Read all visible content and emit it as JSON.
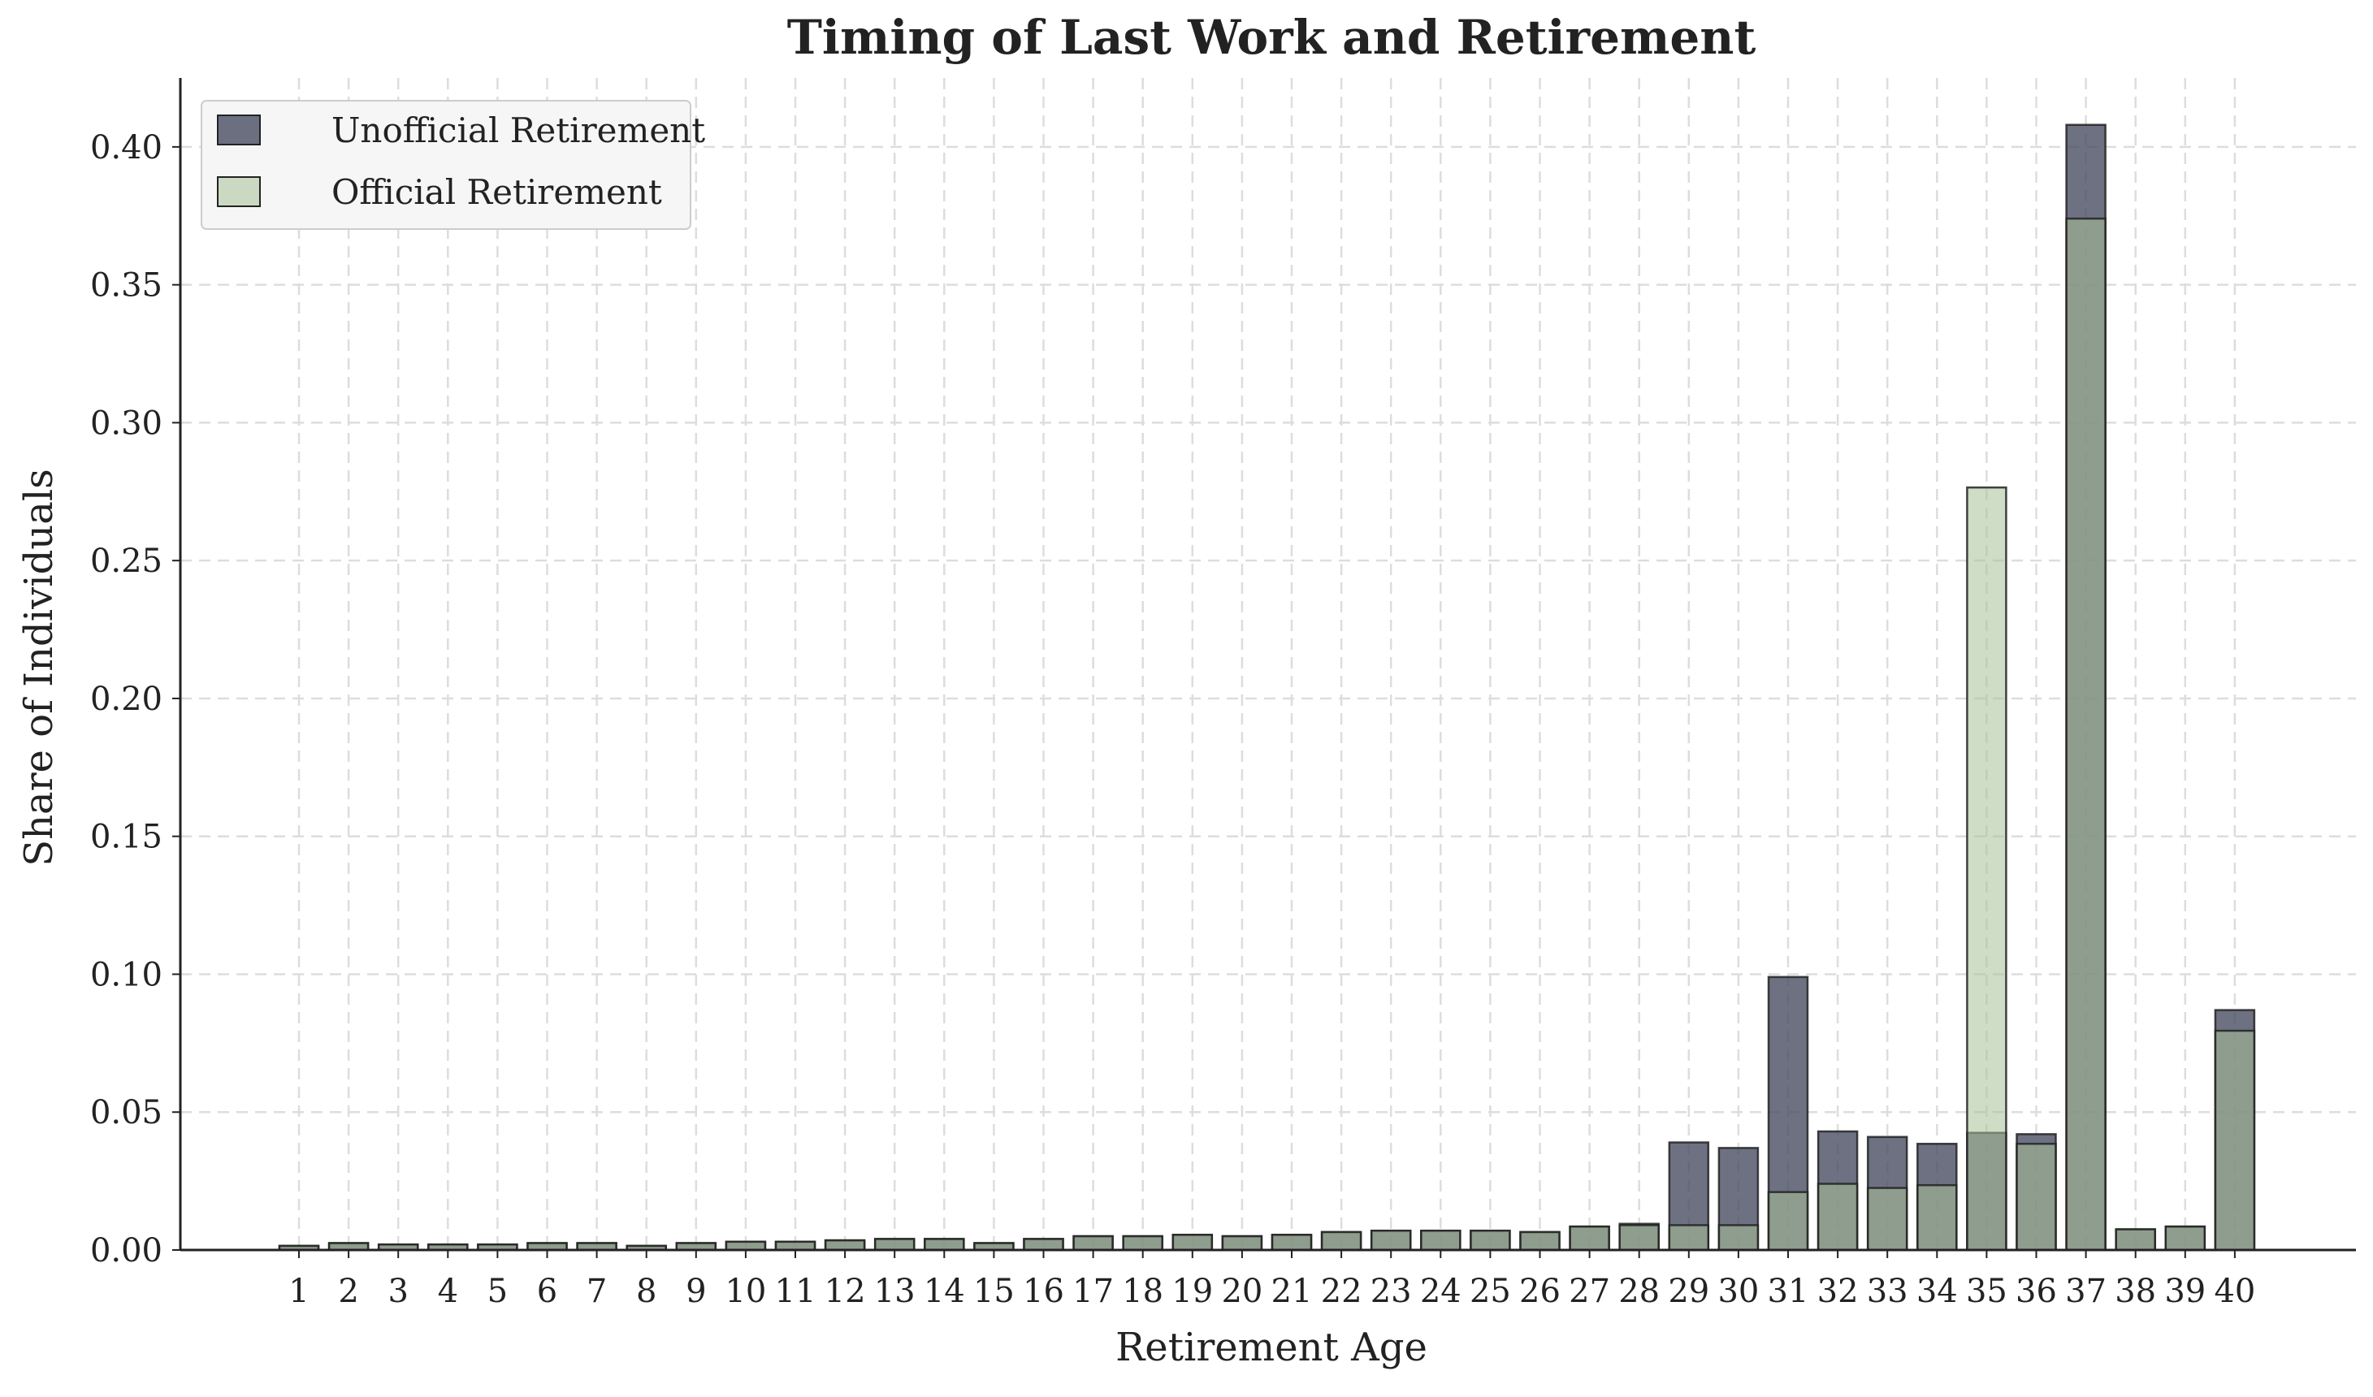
{
  "chart_data": {
    "type": "bar",
    "title": "Timing of Last Work and Retirement",
    "xlabel": "Retirement Age",
    "ylabel": "Share of Individuals",
    "ylim": [
      0,
      0.425
    ],
    "yticks": [
      "0.00",
      "0.05",
      "0.10",
      "0.15",
      "0.20",
      "0.25",
      "0.30",
      "0.35",
      "0.40"
    ],
    "grid": true,
    "legend_position": "top-left",
    "categories": [
      "1",
      "2",
      "3",
      "4",
      "5",
      "6",
      "7",
      "8",
      "9",
      "10",
      "11",
      "12",
      "13",
      "14",
      "15",
      "16",
      "17",
      "18",
      "19",
      "20",
      "21",
      "22",
      "23",
      "24",
      "25",
      "26",
      "27",
      "28",
      "29",
      "30",
      "31",
      "32",
      "33",
      "34",
      "35",
      "36",
      "37",
      "38",
      "39",
      "40"
    ],
    "series": [
      {
        "name": "Unofficial Retirement",
        "color": "#4a4e63",
        "values": [
          0.0015,
          0.0025,
          0.002,
          0.002,
          0.002,
          0.0025,
          0.0025,
          0.0015,
          0.0025,
          0.003,
          0.003,
          0.0035,
          0.004,
          0.004,
          0.0025,
          0.004,
          0.005,
          0.005,
          0.0055,
          0.005,
          0.0055,
          0.0065,
          0.007,
          0.007,
          0.007,
          0.0065,
          0.0085,
          0.0095,
          0.039,
          0.037,
          0.099,
          0.043,
          0.041,
          0.0385,
          0.0425,
          0.042,
          0.408,
          0.0075,
          0.0085,
          0.087
        ]
      },
      {
        "name": "Official Retirement",
        "color": "#a9c198",
        "values": [
          0.0015,
          0.0025,
          0.002,
          0.002,
          0.002,
          0.0025,
          0.0025,
          0.0015,
          0.0025,
          0.003,
          0.003,
          0.0035,
          0.004,
          0.004,
          0.0025,
          0.004,
          0.005,
          0.005,
          0.0055,
          0.005,
          0.0055,
          0.0065,
          0.007,
          0.007,
          0.007,
          0.0065,
          0.0085,
          0.009,
          0.009,
          0.009,
          0.021,
          0.024,
          0.0225,
          0.0235,
          0.2765,
          0.0385,
          0.374,
          0.0075,
          0.0085,
          0.0795
        ]
      }
    ]
  }
}
